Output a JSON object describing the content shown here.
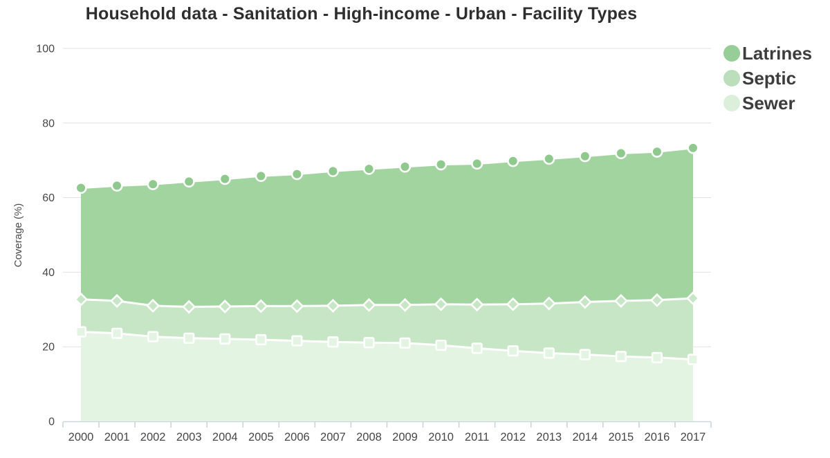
{
  "title": "Household data - Sanitation - High-income - Urban - Facility Types",
  "legend": {
    "items": [
      {
        "label": "Latrines",
        "color": "#97cd96"
      },
      {
        "label": "Septic",
        "color": "#bbdfba"
      },
      {
        "label": "Sewer",
        "color": "#dcefdb"
      }
    ]
  },
  "axes": {
    "y_label": "Coverage (%)",
    "y_ticks": [
      0,
      20,
      40,
      60,
      80,
      100
    ],
    "x_labels": [
      "2000",
      "2001",
      "2002",
      "2003",
      "2004",
      "2005",
      "2006",
      "2007",
      "2008",
      "2009",
      "2010",
      "2011",
      "2012",
      "2013",
      "2014",
      "2015",
      "2016",
      "2017"
    ]
  },
  "colors": {
    "grid": "#e1e1e1",
    "axis_line": "#ccd6dd",
    "tick_mark": "#c6d2dc",
    "tick_label": "#474747",
    "axis_title": "#4a4a4a",
    "marker_stroke": "#ffffff"
  },
  "chart_data": {
    "type": "area",
    "title": "Household data - Sanitation - High-income - Urban - Facility Types",
    "xlabel": "",
    "ylabel": "Coverage (%)",
    "ylim": [
      0,
      100
    ],
    "grid": true,
    "legend_position": "top-right",
    "x": [
      2000,
      2001,
      2002,
      2003,
      2004,
      2005,
      2006,
      2007,
      2008,
      2009,
      2010,
      2011,
      2012,
      2013,
      2014,
      2015,
      2016,
      2017
    ],
    "series": [
      {
        "name": "Latrines",
        "marker": "circle",
        "fill": "#a2d4a0",
        "marker_color": "#8fc98e",
        "values": [
          62.6,
          63.2,
          63.6,
          64.3,
          65.0,
          65.8,
          66.3,
          67.1,
          67.7,
          68.3,
          68.9,
          69.1,
          69.8,
          70.4,
          71.1,
          71.9,
          72.3,
          73.3
        ]
      },
      {
        "name": "Septic",
        "marker": "diamond",
        "fill": "#c7e6c5",
        "marker_color": "#c7e6c5",
        "values": [
          32.7,
          32.3,
          31.0,
          30.7,
          30.8,
          30.9,
          30.9,
          31.0,
          31.2,
          31.2,
          31.4,
          31.3,
          31.4,
          31.6,
          32.0,
          32.3,
          32.5,
          33.0
        ]
      },
      {
        "name": "Sewer",
        "marker": "square",
        "fill": "#e4f4e2",
        "marker_color": "#e4f4e2",
        "values": [
          24.0,
          23.6,
          22.7,
          22.3,
          22.1,
          21.9,
          21.6,
          21.3,
          21.1,
          21.0,
          20.4,
          19.6,
          18.9,
          18.3,
          17.9,
          17.4,
          17.1,
          16.6
        ]
      }
    ]
  }
}
